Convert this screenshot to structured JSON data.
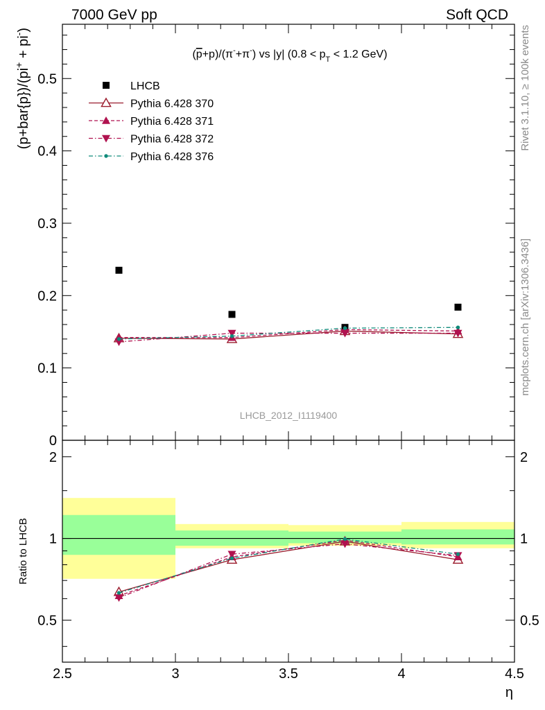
{
  "header": {
    "left": "7000 GeV pp",
    "right": "Soft QCD"
  },
  "side_labels": {
    "rivet": "Rivet 3.1.10, ≥ 100k events",
    "mcplots": "mcplots.cern.ch [arXiv:1306.3436]"
  },
  "chart_data": [
    {
      "type": "scatter",
      "panel": "main",
      "title_parts": {
        "p1": "(",
        "pbar": "p",
        "p2": "+p)/(π",
        "sup1": "-",
        "p3": "+π",
        "sup2": "-",
        "p4": ") vs |y| (0.8 < p",
        "sub": "T",
        "p5": " < 1.2 GeV)"
      },
      "ylabel_parts": {
        "a": "(p+bar{p})/(pi",
        "sup1": "+",
        "b": " + pi",
        "sup2": "-",
        "c": ")"
      },
      "xlim": [
        2.5,
        4.5
      ],
      "ylim": [
        0,
        0.575
      ],
      "y_ticks": [
        0,
        0.1,
        0.2,
        0.3,
        0.4,
        0.5
      ],
      "y_tick_labels": [
        "0",
        "0.1",
        "0.2",
        "0.3",
        "0.4",
        "0.5"
      ],
      "x_edges": [
        2.5,
        3.0,
        3.5,
        4.0,
        4.5
      ],
      "x": [
        2.75,
        3.25,
        3.75,
        4.25
      ],
      "watermark": "LHCB_2012_I1119400",
      "legend_placement": "top-left",
      "series": [
        {
          "name": "LHCB",
          "values": [
            0.235,
            0.174,
            0.156,
            0.184
          ],
          "color": "#000000",
          "marker": "square",
          "line": "none"
        },
        {
          "name": "Pythia 6.428 370",
          "values": [
            0.141,
            0.14,
            0.151,
            0.147
          ],
          "color": "#9a1b2c",
          "marker": "triangle-open",
          "line": "solid"
        },
        {
          "name": "Pythia 6.428 371",
          "values": [
            0.142,
            0.142,
            0.153,
            0.151
          ],
          "color": "#b0124f",
          "marker": "triangle",
          "line": "dashed"
        },
        {
          "name": "Pythia 6.428 372",
          "values": [
            0.136,
            0.148,
            0.148,
            0.148
          ],
          "color": "#b0124f",
          "marker": "triangle-down",
          "line": "dashdot"
        },
        {
          "name": "Pythia 6.428 376",
          "values": [
            0.14,
            0.144,
            0.155,
            0.156
          ],
          "color": "#0f8a7a",
          "marker": "dot",
          "line": "dashdot"
        }
      ]
    },
    {
      "type": "scatter",
      "panel": "ratio",
      "ylabel": "Ratio to LHCB",
      "xlabel": "η",
      "xlim": [
        2.5,
        4.5
      ],
      "ylim": [
        0.35,
        2.3
      ],
      "y_ticks": [
        0.5,
        1,
        2
      ],
      "y_tick_labels": [
        "0.5",
        "1",
        "2"
      ],
      "x_ticks": [
        2.5,
        3,
        3.5,
        4,
        4.5
      ],
      "x_tick_labels": [
        "2.5",
        "3",
        "3.5",
        "4",
        "4.5"
      ],
      "x": [
        2.75,
        3.25,
        3.75,
        4.25
      ],
      "bands": {
        "x_edges": [
          2.5,
          3.0,
          3.5,
          4.0,
          4.5
        ],
        "stat": [
          [
            0.87,
            1.22
          ],
          [
            0.94,
            1.07
          ],
          [
            0.96,
            1.06
          ],
          [
            0.95,
            1.08
          ]
        ],
        "total": [
          [
            0.71,
            1.41
          ],
          [
            0.92,
            1.13
          ],
          [
            0.94,
            1.12
          ],
          [
            0.92,
            1.15
          ]
        ],
        "stat_color": "#99ff99",
        "total_color": "#ffff99"
      },
      "series": [
        {
          "name": "Pythia 6.428 370",
          "values": [
            0.635,
            0.835,
            0.975,
            0.835
          ],
          "color": "#9a1b2c",
          "marker": "triangle-open",
          "line": "solid"
        },
        {
          "name": "Pythia 6.428 371",
          "values": [
            0.615,
            0.855,
            0.985,
            0.855
          ],
          "color": "#b0124f",
          "marker": "triangle",
          "line": "dashed"
        },
        {
          "name": "Pythia 6.428 372",
          "values": [
            0.605,
            0.875,
            0.955,
            0.865
          ],
          "color": "#b0124f",
          "marker": "triangle-down",
          "line": "dashdot"
        },
        {
          "name": "Pythia 6.428 376",
          "values": [
            0.63,
            0.845,
            0.995,
            0.875
          ],
          "color": "#0f8a7a",
          "marker": "dot",
          "line": "dashdot"
        }
      ]
    }
  ]
}
